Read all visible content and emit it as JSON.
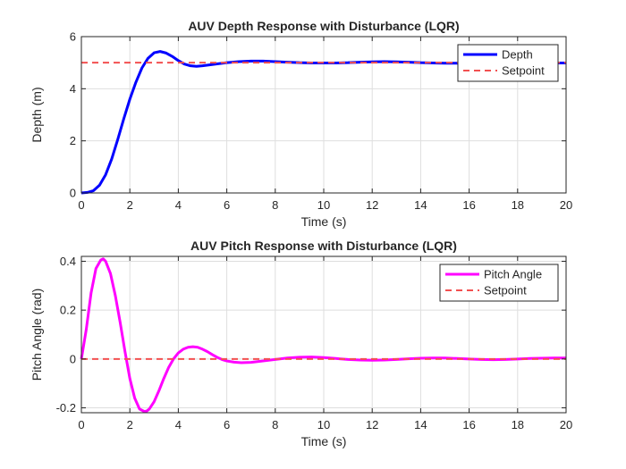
{
  "chart_data": [
    {
      "type": "line",
      "title": "AUV Depth Response with Disturbance (LQR)",
      "xlabel": "Time (s)",
      "ylabel": "Depth (m)",
      "xlim": [
        0,
        20
      ],
      "ylim": [
        0,
        6
      ],
      "xticks": [
        0,
        2,
        4,
        6,
        8,
        10,
        12,
        14,
        16,
        18,
        20
      ],
      "yticks": [
        0,
        2,
        4,
        6
      ],
      "grid": true,
      "legend_position": "top-right",
      "series": [
        {
          "name": "Depth",
          "style": "solid",
          "color": "#0000ff",
          "x": [
            0,
            0.25,
            0.5,
            0.75,
            1.0,
            1.25,
            1.5,
            1.75,
            2.0,
            2.25,
            2.5,
            2.75,
            3.0,
            3.25,
            3.5,
            3.75,
            4.0,
            4.25,
            4.5,
            4.75,
            5.0,
            5.5,
            6.0,
            6.5,
            7.0,
            7.5,
            8.0,
            8.5,
            9.0,
            9.5,
            10.0,
            10.5,
            11.0,
            11.5,
            12.0,
            12.5,
            13.0,
            13.5,
            14.0,
            14.5,
            15.0,
            15.5,
            16.0,
            16.5,
            17.0,
            17.5,
            18.0,
            18.5,
            19.0,
            19.5,
            20.0
          ],
          "values": [
            0,
            0.02,
            0.09,
            0.3,
            0.7,
            1.3,
            2.05,
            2.85,
            3.6,
            4.25,
            4.8,
            5.17,
            5.38,
            5.43,
            5.37,
            5.24,
            5.08,
            4.95,
            4.88,
            4.86,
            4.88,
            4.94,
            5.0,
            5.04,
            5.06,
            5.06,
            5.04,
            5.02,
            5.0,
            4.99,
            4.99,
            4.99,
            5.0,
            5.02,
            5.03,
            5.04,
            5.03,
            5.02,
            5.0,
            4.99,
            4.98,
            4.98,
            4.98,
            4.99,
            5.0,
            5.01,
            5.01,
            5.01,
            5.0,
            4.99,
            4.99
          ]
        },
        {
          "name": "Setpoint",
          "style": "dashed",
          "color": "#f25050",
          "x": [
            0,
            20
          ],
          "values": [
            5,
            5
          ]
        }
      ]
    },
    {
      "type": "line",
      "title": "AUV Pitch Response with Disturbance (LQR)",
      "xlabel": "Time (s)",
      "ylabel": "Pitch Angle (rad)",
      "xlim": [
        0,
        20
      ],
      "ylim": [
        -0.22,
        0.42
      ],
      "xticks": [
        0,
        2,
        4,
        6,
        8,
        10,
        12,
        14,
        16,
        18,
        20
      ],
      "yticks": [
        -0.2,
        0,
        0.2,
        0.4
      ],
      "grid": true,
      "legend_position": "top-right",
      "series": [
        {
          "name": "Pitch Angle",
          "style": "solid",
          "color": "#ff00ff",
          "x": [
            0,
            0.2,
            0.4,
            0.6,
            0.8,
            0.9,
            1.0,
            1.2,
            1.4,
            1.6,
            1.8,
            2.0,
            2.2,
            2.4,
            2.6,
            2.7,
            2.8,
            3.0,
            3.2,
            3.4,
            3.6,
            3.8,
            4.0,
            4.2,
            4.4,
            4.6,
            4.8,
            5.0,
            5.2,
            5.4,
            5.6,
            5.8,
            6.0,
            6.3,
            6.6,
            7.0,
            7.5,
            8.0,
            8.5,
            9.0,
            9.5,
            10.0,
            10.5,
            11.0,
            11.5,
            12.0,
            12.5,
            13.0,
            13.5,
            14.0,
            14.5,
            15.0,
            15.5,
            16.0,
            16.5,
            17.0,
            17.5,
            18.0,
            18.5,
            19.0,
            19.5,
            20.0
          ],
          "values": [
            0,
            0.12,
            0.27,
            0.37,
            0.405,
            0.41,
            0.4,
            0.35,
            0.26,
            0.15,
            0.03,
            -0.08,
            -0.16,
            -0.205,
            -0.215,
            -0.213,
            -0.205,
            -0.175,
            -0.13,
            -0.08,
            -0.035,
            0.0,
            0.025,
            0.04,
            0.048,
            0.05,
            0.048,
            0.04,
            0.03,
            0.018,
            0.007,
            -0.002,
            -0.008,
            -0.013,
            -0.015,
            -0.014,
            -0.008,
            -0.002,
            0.004,
            0.007,
            0.008,
            0.006,
            0.002,
            -0.002,
            -0.004,
            -0.005,
            -0.004,
            -0.002,
            0.001,
            0.003,
            0.004,
            0.004,
            0.002,
            0.0,
            -0.002,
            -0.003,
            -0.002,
            0.0,
            0.002,
            0.003,
            0.004,
            0.004
          ]
        },
        {
          "name": "Setpoint",
          "style": "dashed",
          "color": "#f25050",
          "x": [
            0,
            20
          ],
          "values": [
            0,
            0
          ]
        }
      ]
    }
  ]
}
